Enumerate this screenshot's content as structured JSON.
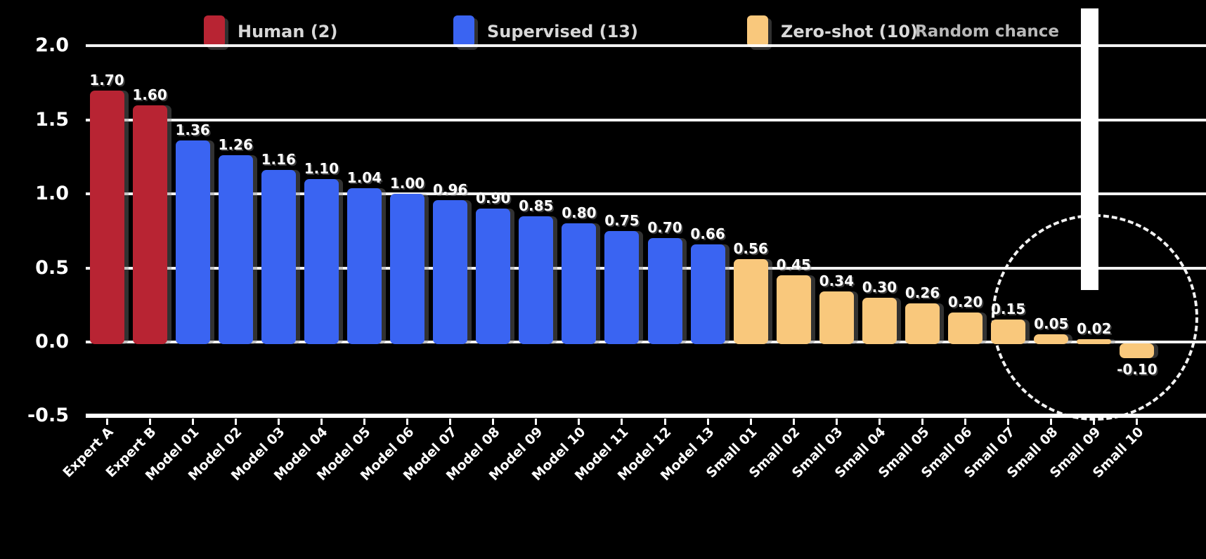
{
  "colors": {
    "background": "#000000",
    "grid": "#ffffff",
    "red": "#b82433",
    "blue": "#3a64f2",
    "orange": "#f9c87c",
    "value_label": "#ffffff",
    "legend_text": "#d8d8d8",
    "annotation_text": "#b9b9b9"
  },
  "legend": {
    "items": [
      {
        "label": "Human (2)",
        "color_key": "red"
      },
      {
        "label": "Supervised (13)",
        "color_key": "blue"
      },
      {
        "label": "Zero-shot (10)",
        "color_key": "orange"
      }
    ]
  },
  "annotation": {
    "label": "Random chance",
    "note": "vertical line pointing to near-zero bar inside dashed highlight circle"
  },
  "chart_data": {
    "type": "bar",
    "title": "",
    "xlabel": "",
    "ylabel": "",
    "ylim": [
      -0.5,
      2.0
    ],
    "grid": "horizontal gridlines on, black background",
    "legend_position": "top",
    "highlight": "dashed circle around the last four near-zero bars",
    "yticks": [
      {
        "value": 2.0,
        "label": "2.0"
      },
      {
        "value": 1.5,
        "label": "1.5"
      },
      {
        "value": 1.0,
        "label": "1.0"
      },
      {
        "value": 0.5,
        "label": "0.5"
      },
      {
        "value": 0.0,
        "label": "0.0"
      },
      {
        "value": -0.5,
        "label": "-0.5"
      }
    ],
    "categories": [
      "Expert A",
      "Expert B",
      "Model 01",
      "Model 02",
      "Model 03",
      "Model 04",
      "Model 05",
      "Model 06",
      "Model 07",
      "Model 08",
      "Model 09",
      "Model 10",
      "Model 11",
      "Model 12",
      "Model 13",
      "Small 01",
      "Small 02",
      "Small 03",
      "Small 04",
      "Small 05",
      "Small 06",
      "Small 07",
      "Small 08",
      "Small 09",
      "Small 10"
    ],
    "groups": [
      "red",
      "red",
      "blue",
      "blue",
      "blue",
      "blue",
      "blue",
      "blue",
      "blue",
      "blue",
      "blue",
      "blue",
      "blue",
      "blue",
      "blue",
      "orange",
      "orange",
      "orange",
      "orange",
      "orange",
      "orange",
      "orange",
      "orange",
      "orange",
      "orange"
    ],
    "values": [
      1.7,
      1.6,
      1.36,
      1.26,
      1.16,
      1.1,
      1.04,
      1.0,
      0.96,
      0.9,
      0.85,
      0.8,
      0.75,
      0.7,
      0.66,
      0.56,
      0.45,
      0.34,
      0.3,
      0.26,
      0.2,
      0.15,
      0.05,
      0.02,
      -0.1
    ],
    "value_labels": [
      "1.70",
      "1.60",
      "1.36",
      "1.26",
      "1.16",
      "1.10",
      "1.04",
      "1.00",
      "0.96",
      "0.90",
      "0.85",
      "0.80",
      "0.75",
      "0.70",
      "0.66",
      "0.56",
      "0.45",
      "0.34",
      "0.30",
      "0.26",
      "0.20",
      "0.15",
      "0.05",
      "0.02",
      "-0.10"
    ]
  }
}
